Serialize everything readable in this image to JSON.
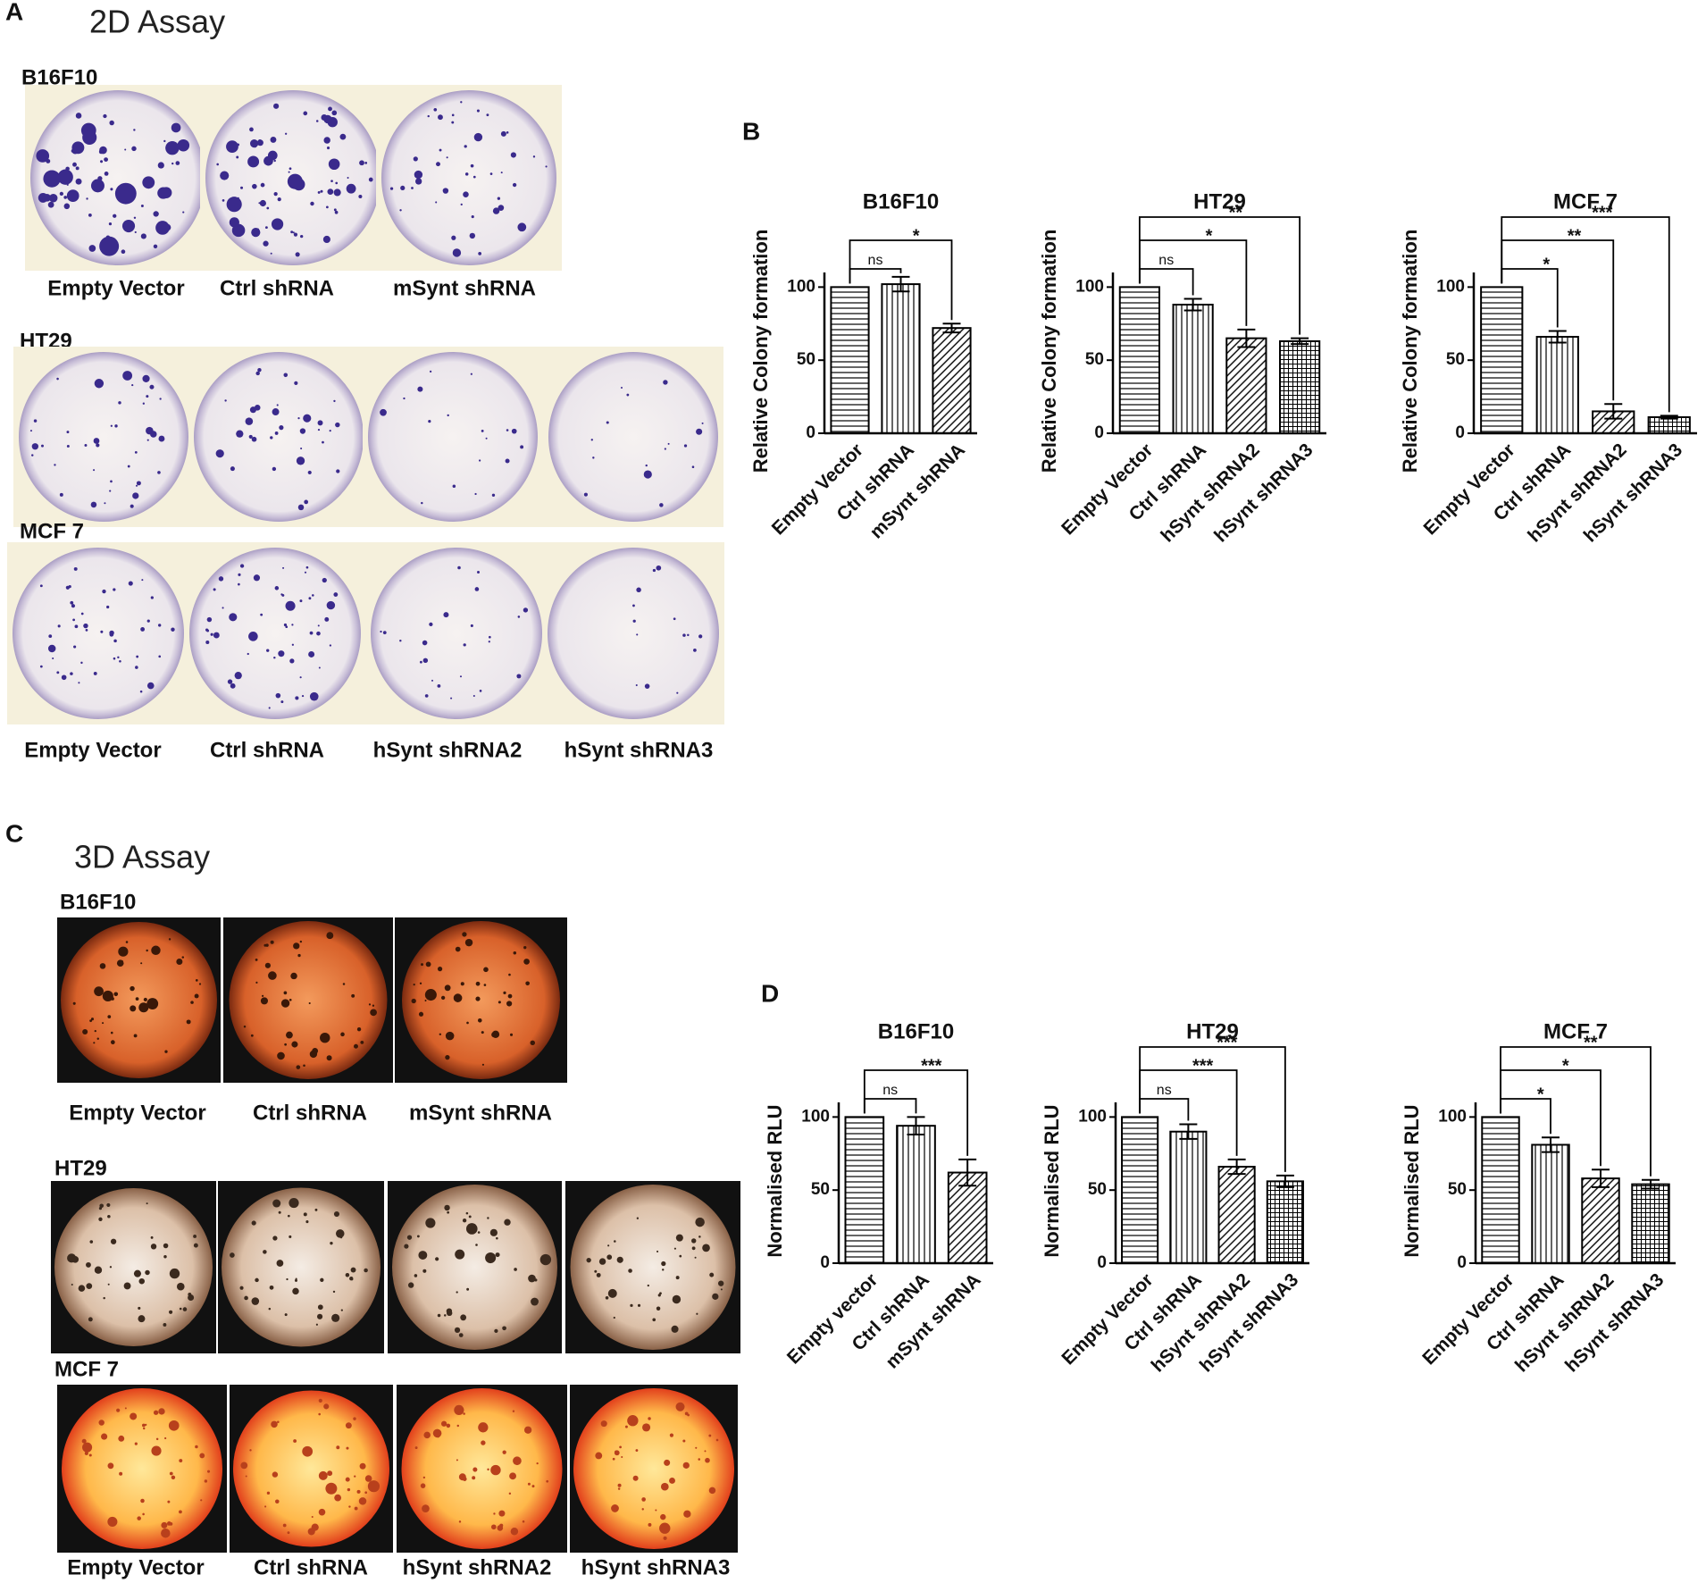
{
  "panels": {
    "a": {
      "letter": "A",
      "title": "2D Assay",
      "rows": [
        {
          "label": "B16F10",
          "captions": [
            "Empty Vector",
            "Ctrl shRNA",
            "mSynt shRNA"
          ]
        },
        {
          "label": "HT29"
        },
        {
          "label": "MCF 7",
          "captions": [
            "Empty Vector",
            "Ctrl shRNA",
            "hSynt shRNA2",
            "hSynt shRNA3"
          ]
        }
      ]
    },
    "b": {
      "letter": "B"
    },
    "c": {
      "letter": "C",
      "title": "3D Assay",
      "rows": [
        {
          "label": "B16F10",
          "captions": [
            "Empty Vector",
            "Ctrl shRNA",
            "mSynt shRNA"
          ]
        },
        {
          "label": "HT29"
        },
        {
          "label": "MCF 7",
          "captions": [
            "Empty Vector",
            "Ctrl shRNA",
            "hSynt shRNA2",
            "hSynt shRNA3"
          ]
        }
      ]
    },
    "d": {
      "letter": "D"
    }
  },
  "chart_data": [
    {
      "type": "bar",
      "title": "B16F10",
      "y_label": "Relative Colony formation",
      "color": "#000000",
      "categories": [
        "Empty Vector",
        "Ctrl shRNA",
        "mSynt shRNA"
      ],
      "values": [
        100,
        102,
        72
      ],
      "errors": [
        0,
        5,
        3
      ],
      "ylim": [
        0,
        110
      ],
      "yticks": [
        0,
        50,
        100
      ],
      "annotations": [
        {
          "label": "ns",
          "groups": [
            0,
            1
          ]
        },
        {
          "label": "*",
          "groups": [
            0,
            2
          ]
        }
      ]
    },
    {
      "type": "bar",
      "title": "HT29",
      "y_label": "Relative Colony formation",
      "color": "#000000",
      "categories": [
        "Empty Vector",
        "Ctrl shRNA",
        "hSynt shRNA2",
        "hSynt shRNA3"
      ],
      "values": [
        100,
        88,
        65,
        63
      ],
      "errors": [
        0,
        4,
        6,
        2
      ],
      "ylim": [
        0,
        110
      ],
      "yticks": [
        0,
        50,
        100
      ],
      "annotations": [
        {
          "label": "ns",
          "groups": [
            0,
            1
          ]
        },
        {
          "label": "*",
          "groups": [
            0,
            2
          ]
        },
        {
          "label": "**",
          "groups": [
            0,
            3
          ]
        }
      ]
    },
    {
      "type": "bar",
      "title": "MCF 7",
      "y_label": "Relative Colony formation",
      "color": "#000000",
      "categories": [
        "Empty Vector",
        "Ctrl shRNA",
        "hSynt shRNA2",
        "hSynt shRNA3"
      ],
      "values": [
        100,
        66,
        15,
        11
      ],
      "errors": [
        0,
        4,
        5,
        1
      ],
      "ylim": [
        0,
        110
      ],
      "yticks": [
        0,
        50,
        100
      ],
      "annotations": [
        {
          "label": "*",
          "groups": [
            0,
            1
          ]
        },
        {
          "label": "**",
          "groups": [
            0,
            2
          ]
        },
        {
          "label": "***",
          "groups": [
            0,
            3
          ]
        }
      ]
    },
    {
      "type": "bar",
      "title": "B16F10",
      "y_label": "Normalised RLU",
      "color": "#000000",
      "categories": [
        "Empty vector",
        "Ctrl shRNA",
        "mSynt shRNA"
      ],
      "values": [
        100,
        94,
        62
      ],
      "errors": [
        0,
        6,
        9
      ],
      "ylim": [
        0,
        110
      ],
      "yticks": [
        0,
        50,
        100
      ],
      "annotations": [
        {
          "label": "ns",
          "groups": [
            0,
            1
          ]
        },
        {
          "label": "***",
          "groups": [
            0,
            2
          ]
        }
      ]
    },
    {
      "type": "bar",
      "title": "HT29",
      "y_label": "Normalised RLU",
      "color": "#000000",
      "categories": [
        "Empty Vector",
        "Ctrl shRNA",
        "hSynt shRNA2",
        "hSynt shRNA3"
      ],
      "values": [
        100,
        90,
        66,
        56
      ],
      "errors": [
        0,
        5,
        5,
        4
      ],
      "ylim": [
        0,
        110
      ],
      "yticks": [
        0,
        50,
        100
      ],
      "annotations": [
        {
          "label": "ns",
          "groups": [
            0,
            1
          ]
        },
        {
          "label": "***",
          "groups": [
            0,
            2
          ]
        },
        {
          "label": "***",
          "groups": [
            0,
            3
          ]
        }
      ]
    },
    {
      "type": "bar",
      "title": "MCF 7",
      "y_label": "Normalised RLU",
      "color": "#000000",
      "categories": [
        "Empty Vector",
        "Ctrl shRNA",
        "hSynt shRNA2",
        "hSynt shRNA3"
      ],
      "values": [
        100,
        81,
        58,
        54
      ],
      "errors": [
        0,
        5,
        6,
        3
      ],
      "ylim": [
        0,
        110
      ],
      "yticks": [
        0,
        50,
        100
      ],
      "annotations": [
        {
          "label": "*",
          "groups": [
            0,
            1
          ]
        },
        {
          "label": "*",
          "groups": [
            0,
            2
          ]
        },
        {
          "label": "**",
          "groups": [
            0,
            3
          ]
        }
      ]
    }
  ]
}
